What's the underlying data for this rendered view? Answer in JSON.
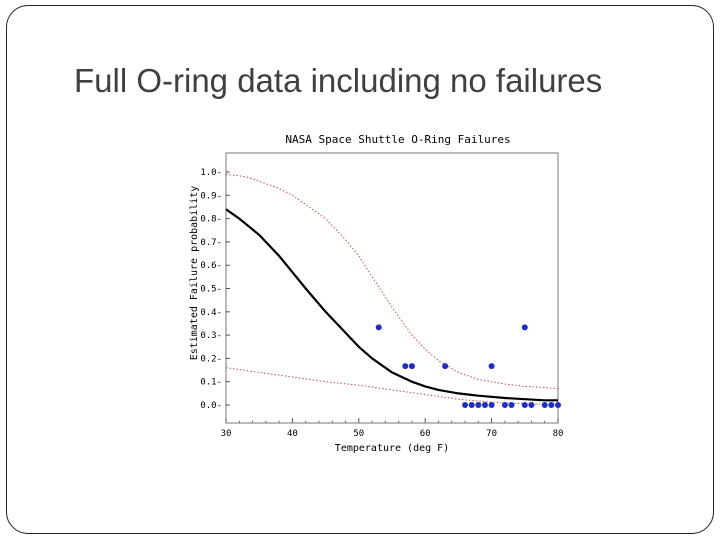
{
  "slide": {
    "title": "Full O-ring data including no failures"
  },
  "chart_data": {
    "type": "scatter",
    "title": "NASA Space Shuttle O-Ring Failures",
    "xlabel": "Temperature (deg F)",
    "ylabel": "Estimated Failure probability",
    "xlim": [
      30,
      80
    ],
    "ylim": [
      0,
      1
    ],
    "x_ticks": [
      "30",
      "40",
      "50",
      "60",
      "70",
      "80"
    ],
    "y_ticks": [
      "0.0",
      "0.1",
      "0.2",
      "0.3",
      "0.4",
      "0.5",
      "0.6",
      "0.7",
      "0.8",
      "0.9",
      "1.0"
    ],
    "grid": false,
    "legend": "none",
    "colors": {
      "points": "#1f2fc0",
      "fit": "#000000",
      "bounds": "#c0504d"
    },
    "points": [
      {
        "x": 53,
        "y": 0.333
      },
      {
        "x": 57,
        "y": 0.167
      },
      {
        "x": 58,
        "y": 0.167
      },
      {
        "x": 63,
        "y": 0.167
      },
      {
        "x": 66,
        "y": 0.0
      },
      {
        "x": 67,
        "y": 0.0
      },
      {
        "x": 68,
        "y": 0.0
      },
      {
        "x": 69,
        "y": 0.0
      },
      {
        "x": 70,
        "y": 0.0
      },
      {
        "x": 70,
        "y": 0.167
      },
      {
        "x": 72,
        "y": 0.0
      },
      {
        "x": 73,
        "y": 0.0
      },
      {
        "x": 75,
        "y": 0.0
      },
      {
        "x": 75,
        "y": 0.333
      },
      {
        "x": 76,
        "y": 0.0
      },
      {
        "x": 78,
        "y": 0.0
      },
      {
        "x": 79,
        "y": 0.0
      },
      {
        "x": 80,
        "y": 0.0
      }
    ],
    "series": [
      {
        "kind": "fit",
        "x": [
          30,
          32,
          35,
          38,
          40,
          42,
          45,
          48,
          50,
          52,
          55,
          58,
          60,
          62,
          65,
          68,
          70,
          72,
          75,
          78,
          80
        ],
        "y": [
          0.84,
          0.8,
          0.73,
          0.64,
          0.57,
          0.5,
          0.4,
          0.31,
          0.25,
          0.2,
          0.14,
          0.1,
          0.08,
          0.065,
          0.05,
          0.04,
          0.035,
          0.03,
          0.025,
          0.02,
          0.02
        ]
      },
      {
        "kind": "upper-bound",
        "x": [
          30,
          33,
          35,
          38,
          40,
          42,
          45,
          48,
          50,
          52,
          55,
          58,
          60,
          62,
          65,
          68,
          70,
          72,
          75,
          78,
          80
        ],
        "y": [
          0.99,
          0.98,
          0.96,
          0.93,
          0.9,
          0.86,
          0.8,
          0.71,
          0.64,
          0.55,
          0.42,
          0.3,
          0.24,
          0.19,
          0.14,
          0.11,
          0.1,
          0.09,
          0.08,
          0.075,
          0.07
        ]
      },
      {
        "kind": "lower-bound",
        "x": [
          30,
          35,
          40,
          45,
          50,
          55,
          60,
          65,
          70,
          75,
          80
        ],
        "y": [
          0.16,
          0.14,
          0.12,
          0.1,
          0.085,
          0.065,
          0.045,
          0.025,
          0.012,
          0.005,
          0.002
        ]
      }
    ]
  }
}
